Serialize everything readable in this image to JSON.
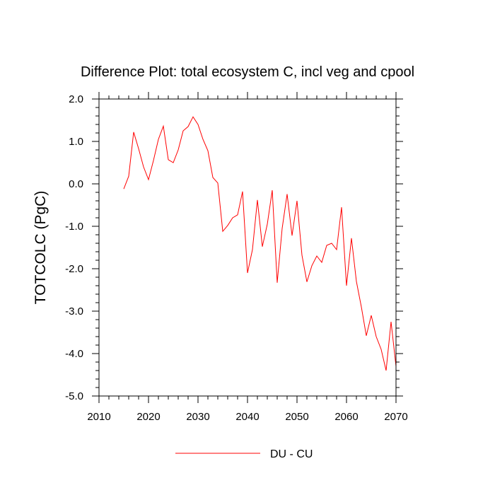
{
  "chart_data": {
    "type": "line",
    "title": "Difference Plot: total ecosystem C, incl veg and cpool",
    "xlabel": "",
    "ylabel": "TOTCOLC  (PgC)",
    "xlim": [
      2010,
      2070
    ],
    "ylim": [
      -5.0,
      2.0
    ],
    "xticks": [
      2010,
      2020,
      2030,
      2040,
      2050,
      2060,
      2070
    ],
    "xtick_labels": [
      "2010",
      "2020",
      "2030",
      "2040",
      "2050",
      "2060",
      "2070"
    ],
    "yticks": [
      2.0,
      1.0,
      0.0,
      -1.0,
      -2.0,
      -3.0,
      -4.0,
      -5.0
    ],
    "ytick_labels": [
      "2.0",
      "1.0",
      "0.0",
      "-1.0",
      "-2.0",
      "-3.0",
      "-4.0",
      "-5.0"
    ],
    "grid": false,
    "legend_position": "bottom-center",
    "series": [
      {
        "name": "DU - CU",
        "color": "#ff0000",
        "x": [
          2015,
          2016,
          2017,
          2018,
          2019,
          2020,
          2021,
          2022,
          2023,
          2024,
          2025,
          2026,
          2027,
          2028,
          2029,
          2030,
          2031,
          2032,
          2033,
          2034,
          2035,
          2036,
          2037,
          2038,
          2039,
          2040,
          2041,
          2042,
          2043,
          2044,
          2045,
          2046,
          2047,
          2048,
          2049,
          2050,
          2051,
          2052,
          2053,
          2054,
          2055,
          2056,
          2057,
          2058,
          2059,
          2060,
          2061,
          2062,
          2063,
          2064,
          2065,
          2066,
          2067,
          2068,
          2069,
          2070
        ],
        "y": [
          -0.12,
          0.18,
          1.22,
          0.83,
          0.4,
          0.1,
          0.55,
          1.05,
          1.36,
          0.57,
          0.5,
          0.8,
          1.25,
          1.35,
          1.58,
          1.4,
          1.05,
          0.78,
          0.15,
          0.02,
          -1.12,
          -0.98,
          -0.8,
          -0.73,
          -0.18,
          -2.1,
          -1.55,
          -0.38,
          -1.48,
          -0.95,
          -0.15,
          -2.33,
          -1.05,
          -0.24,
          -1.22,
          -0.4,
          -1.68,
          -2.31,
          -1.93,
          -1.7,
          -1.85,
          -1.45,
          -1.4,
          -1.55,
          -0.55,
          -2.4,
          -1.28,
          -2.3,
          -2.9,
          -3.58,
          -3.1,
          -3.6,
          -3.9,
          -4.4,
          -3.25,
          -4.3
        ]
      }
    ]
  }
}
